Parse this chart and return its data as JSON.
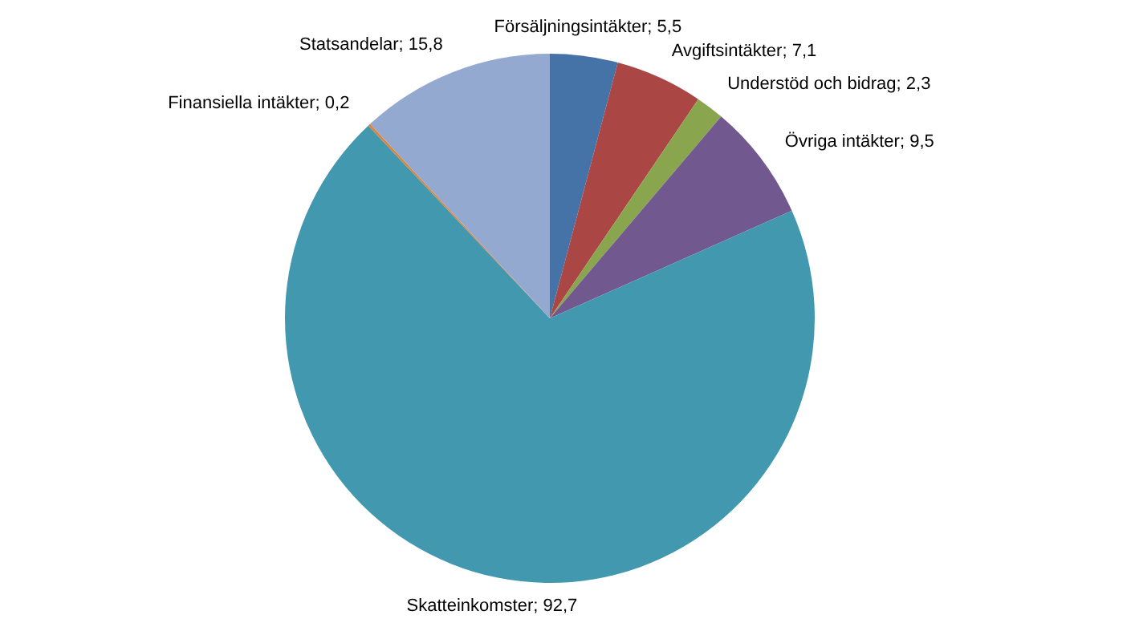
{
  "chart_data": {
    "type": "pie",
    "categories": [
      "Försäljningsintäkter",
      "Avgiftsintäkter",
      "Understöd och bidrag",
      "Övriga intäkter",
      "Skatteinkomster",
      "Finansiella intäkter",
      "Statsandelar"
    ],
    "values": [
      5.5,
      7.1,
      2.3,
      9.5,
      92.7,
      0.2,
      15.8
    ],
    "value_labels": [
      "5,5",
      "7,1",
      "2,3",
      "9,5",
      "92,7",
      "0,2",
      "15,8"
    ],
    "colors": [
      "#4572a7",
      "#aa4643",
      "#89a54e",
      "#71588f",
      "#4198af",
      "#db843d",
      "#93a9cf"
    ]
  }
}
